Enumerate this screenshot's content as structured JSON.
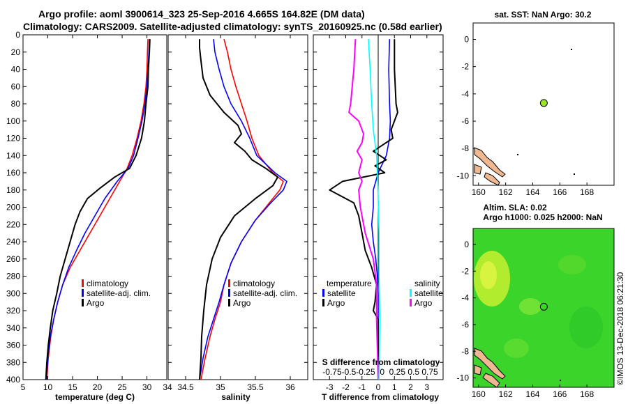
{
  "header": {
    "title_line1": "Argo profile: aoml 3900614_323 25-Sep-2016 4.665S 164.82E (DM data)",
    "title_line2": "Climatology: CARS2009. Satellite-adjusted climatology: synTS_20160925.nc (0.58d earlier)"
  },
  "colors": {
    "climatology": "#ff0000",
    "satellite": "#0000ff",
    "argo": "#000000",
    "salinity_argo": "#ff00ff",
    "salinity_satellite": "#00ffff",
    "land": "#f0b890",
    "float_marker": "#9be22d"
  },
  "chart_data": [
    {
      "type": "line",
      "id": "temperature",
      "xlabel": "temperature (deg C)",
      "ylabel": "",
      "xlim": [
        5,
        34
      ],
      "ylim": [
        400,
        0
      ],
      "xticks": [
        5,
        10,
        15,
        20,
        25,
        30
      ],
      "extra_xtick_label": "34",
      "yticks": [
        0,
        20,
        40,
        60,
        80,
        100,
        120,
        140,
        160,
        180,
        200,
        220,
        240,
        260,
        280,
        300,
        320,
        340,
        360,
        380,
        400
      ],
      "legend": [
        "climatology",
        "satellite-adj. clim.",
        "Argo"
      ],
      "series": [
        {
          "name": "climatology",
          "color": "#ff0000",
          "points": [
            [
              30.2,
              5
            ],
            [
              30.1,
              20
            ],
            [
              30.0,
              40
            ],
            [
              29.8,
              60
            ],
            [
              29.4,
              80
            ],
            [
              28.8,
              100
            ],
            [
              28.0,
              120
            ],
            [
              27.0,
              140
            ],
            [
              26.0,
              155
            ],
            [
              24.5,
              170
            ],
            [
              22.5,
              190
            ],
            [
              20.5,
              210
            ],
            [
              18.5,
              230
            ],
            [
              16.5,
              250
            ],
            [
              14.5,
              270
            ],
            [
              13.0,
              290
            ],
            [
              12.0,
              310
            ],
            [
              11.2,
              330
            ],
            [
              10.6,
              350
            ],
            [
              10.1,
              375
            ],
            [
              9.8,
              400
            ]
          ]
        },
        {
          "name": "satellite-adj. clim.",
          "color": "#0000ff",
          "points": [
            [
              30.5,
              5
            ],
            [
              30.4,
              20
            ],
            [
              30.2,
              40
            ],
            [
              30.0,
              60
            ],
            [
              29.6,
              80
            ],
            [
              29.0,
              100
            ],
            [
              28.2,
              120
            ],
            [
              27.3,
              140
            ],
            [
              26.2,
              155
            ],
            [
              24.0,
              170
            ],
            [
              21.5,
              190
            ],
            [
              19.5,
              210
            ],
            [
              17.5,
              230
            ],
            [
              15.8,
              250
            ],
            [
              14.2,
              270
            ],
            [
              13.0,
              290
            ],
            [
              12.0,
              310
            ],
            [
              11.2,
              330
            ],
            [
              10.5,
              350
            ],
            [
              10.0,
              375
            ],
            [
              9.7,
              400
            ]
          ]
        },
        {
          "name": "Argo",
          "color": "#000000",
          "points": [
            [
              30.6,
              5
            ],
            [
              30.5,
              20
            ],
            [
              30.3,
              40
            ],
            [
              30.2,
              60
            ],
            [
              29.8,
              80
            ],
            [
              29.5,
              100
            ],
            [
              28.9,
              120
            ],
            [
              27.8,
              140
            ],
            [
              26.5,
              155
            ],
            [
              23.5,
              165
            ],
            [
              20.5,
              178
            ],
            [
              18.0,
              190
            ],
            [
              16.5,
              205
            ],
            [
              15.5,
              220
            ],
            [
              14.5,
              240
            ],
            [
              13.5,
              260
            ],
            [
              12.5,
              280
            ],
            [
              11.8,
              300
            ],
            [
              11.0,
              320
            ],
            [
              10.5,
              340
            ],
            [
              10.1,
              360
            ],
            [
              9.8,
              380
            ],
            [
              9.6,
              400
            ]
          ]
        }
      ]
    },
    {
      "type": "line",
      "id": "salinity",
      "xlabel": "salinity",
      "xlim": [
        34.25,
        36.25
      ],
      "ylim": [
        400,
        0
      ],
      "xticks": [
        34.5,
        35,
        35.5,
        36
      ],
      "xtick_labels": [
        "34.5",
        "35",
        "35.5",
        "36"
      ],
      "legend": [
        "climatology",
        "satellite-adj. clim.",
        "Argo"
      ],
      "series": [
        {
          "name": "climatology",
          "color": "#ff0000",
          "points": [
            [
              35.05,
              5
            ],
            [
              35.1,
              20
            ],
            [
              35.15,
              40
            ],
            [
              35.22,
              60
            ],
            [
              35.3,
              80
            ],
            [
              35.38,
              100
            ],
            [
              35.45,
              120
            ],
            [
              35.55,
              140
            ],
            [
              35.75,
              160
            ],
            [
              35.9,
              170
            ],
            [
              35.85,
              180
            ],
            [
              35.7,
              195
            ],
            [
              35.5,
              215
            ],
            [
              35.3,
              240
            ],
            [
              35.15,
              265
            ],
            [
              35.05,
              290
            ],
            [
              35.0,
              310
            ],
            [
              34.92,
              330
            ],
            [
              34.85,
              350
            ],
            [
              34.78,
              375
            ],
            [
              34.72,
              400
            ]
          ]
        },
        {
          "name": "satellite-adj. clim.",
          "color": "#0000ff",
          "points": [
            [
              34.9,
              5
            ],
            [
              34.92,
              20
            ],
            [
              34.98,
              40
            ],
            [
              35.05,
              60
            ],
            [
              35.15,
              80
            ],
            [
              35.3,
              100
            ],
            [
              35.42,
              120
            ],
            [
              35.52,
              140
            ],
            [
              35.78,
              160
            ],
            [
              35.95,
              170
            ],
            [
              35.9,
              180
            ],
            [
              35.72,
              195
            ],
            [
              35.5,
              215
            ],
            [
              35.3,
              240
            ],
            [
              35.15,
              265
            ],
            [
              35.05,
              290
            ],
            [
              34.98,
              310
            ],
            [
              34.9,
              330
            ],
            [
              34.82,
              350
            ],
            [
              34.75,
              375
            ],
            [
              34.7,
              400
            ]
          ]
        },
        {
          "name": "Argo",
          "color": "#000000",
          "points": [
            [
              34.7,
              5
            ],
            [
              34.7,
              15
            ],
            [
              34.72,
              30
            ],
            [
              34.75,
              50
            ],
            [
              34.85,
              70
            ],
            [
              35.05,
              90
            ],
            [
              35.25,
              105
            ],
            [
              35.3,
              115
            ],
            [
              35.2,
              125
            ],
            [
              35.35,
              135
            ],
            [
              35.45,
              145
            ],
            [
              35.65,
              155
            ],
            [
              35.82,
              165
            ],
            [
              35.75,
              175
            ],
            [
              35.5,
              190
            ],
            [
              35.2,
              210
            ],
            [
              35.0,
              235
            ],
            [
              34.88,
              260
            ],
            [
              34.8,
              290
            ],
            [
              34.76,
              320
            ],
            [
              34.73,
              350
            ],
            [
              34.72,
              375
            ],
            [
              34.7,
              400
            ]
          ]
        }
      ]
    },
    {
      "type": "line",
      "id": "difference",
      "xlabel": "T difference from climatology",
      "xlabel_top": "S difference from climatology",
      "xlim": [
        -4,
        4
      ],
      "ylim": [
        400,
        0
      ],
      "xticks": [
        -3,
        -2,
        -1,
        0,
        1,
        2,
        3
      ],
      "xtick_labels": [
        "-3",
        "-2",
        "-1",
        "0",
        "1",
        "2",
        "3"
      ],
      "s_tick_text": "-0.75-0.5-0.25  0  0.25 0.5 0.75",
      "legend_temperature_title": "temperature",
      "legend_salinity_title": "salinity",
      "legend": [
        "satellite",
        "Argo",
        "satellite",
        "Argo"
      ],
      "series": [
        {
          "name": "T satellite",
          "color": "#0000ff",
          "points": [
            [
              0.7,
              5
            ],
            [
              0.65,
              40
            ],
            [
              0.7,
              80
            ],
            [
              0.75,
              100
            ],
            [
              0.7,
              120
            ],
            [
              0.5,
              140
            ],
            [
              0.0,
              160
            ],
            [
              -0.3,
              180
            ],
            [
              -0.3,
              200
            ],
            [
              -0.4,
              220
            ],
            [
              -0.3,
              240
            ],
            [
              -0.15,
              260
            ],
            [
              -0.05,
              280
            ],
            [
              0.0,
              300
            ],
            [
              0.0,
              320
            ],
            [
              0.0,
              400
            ]
          ]
        },
        {
          "name": "T Argo",
          "color": "#000000",
          "points": [
            [
              1.0,
              5
            ],
            [
              1.0,
              40
            ],
            [
              1.1,
              80
            ],
            [
              1.2,
              90
            ],
            [
              0.8,
              110
            ],
            [
              0.9,
              120
            ],
            [
              -0.3,
              135
            ],
            [
              0.5,
              145
            ],
            [
              -0.2,
              152
            ],
            [
              0.4,
              160
            ],
            [
              -2.2,
              170
            ],
            [
              -3.0,
              180
            ],
            [
              -1.5,
              195
            ],
            [
              -1.2,
              210
            ],
            [
              -1.0,
              230
            ],
            [
              -0.8,
              250
            ],
            [
              -0.4,
              270
            ],
            [
              -0.1,
              290
            ],
            [
              -0.2,
              310
            ],
            [
              -0.3,
              320
            ],
            [
              0.0,
              330
            ],
            [
              0.0,
              400
            ]
          ]
        },
        {
          "name": "S Argo",
          "color": "#ff00ff",
          "points": [
            [
              -1.4,
              5
            ],
            [
              -1.5,
              40
            ],
            [
              -1.7,
              80
            ],
            [
              -1.8,
              90
            ],
            [
              -1.2,
              100
            ],
            [
              -0.9,
              115
            ],
            [
              -1.0,
              125
            ],
            [
              -1.3,
              135
            ],
            [
              -1.0,
              145
            ],
            [
              -1.2,
              160
            ],
            [
              -1.0,
              170
            ],
            [
              -1.2,
              180
            ],
            [
              -1.1,
              200
            ],
            [
              -0.8,
              230
            ],
            [
              -0.3,
              260
            ],
            [
              -0.1,
              290
            ],
            [
              -0.1,
              330
            ],
            [
              0.0,
              400
            ]
          ]
        },
        {
          "name": "S satellite",
          "color": "#00ffff",
          "points": [
            [
              -0.6,
              5
            ],
            [
              -0.5,
              40
            ],
            [
              -0.4,
              80
            ],
            [
              -0.3,
              110
            ],
            [
              -0.1,
              140
            ],
            [
              -0.05,
              160
            ],
            [
              0.0,
              190
            ],
            [
              0.05,
              230
            ],
            [
              0.05,
              280
            ],
            [
              0.1,
              330
            ],
            [
              0.05,
              400
            ]
          ]
        }
      ]
    }
  ],
  "maps": {
    "sst": {
      "title": "sat. SST: NaN Argo: 30.2",
      "xticks": [
        "160",
        "162",
        "164",
        "166",
        "168"
      ],
      "yticks": [
        "0",
        "-2",
        "-4",
        "-6",
        "-8",
        "-10"
      ],
      "marker_lon": 164.82,
      "marker_lat": -4.665,
      "background": "#ffffff"
    },
    "ssh": {
      "title_line1": "Altim. SLA: 0.02",
      "title_line2": "Argo h1000: 0.025 h2000: NaN",
      "xticks": [
        "160",
        "162",
        "164",
        "166",
        "168"
      ],
      "yticks": [
        "0",
        "-2",
        "-4",
        "-6",
        "-8",
        "-10"
      ],
      "marker_lon": 164.82,
      "marker_lat": -4.665,
      "field_color": "#3ad42a",
      "highlight_color": "#c8f030"
    }
  },
  "credit": "©IMOS 13-Dec-2018 06:21:30"
}
